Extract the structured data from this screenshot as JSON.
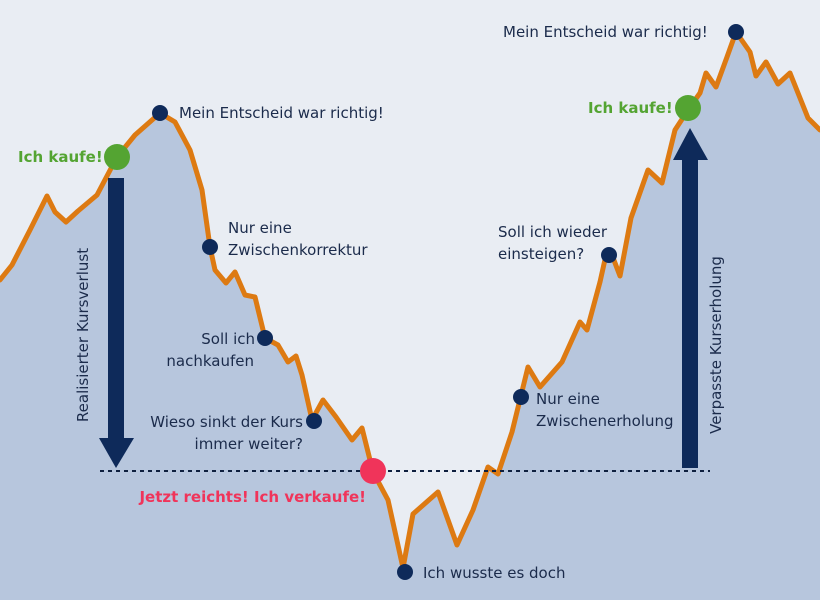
{
  "colors": {
    "background": "#e9edf3",
    "area_fill": "#b7c6dd",
    "price_line": "#dd7a12",
    "marker_dark": "#0e2a5a",
    "buy_marker": "#54a432",
    "sell_marker": "#f0345a",
    "arrow": "#0e2a5a"
  },
  "labels": {
    "buy_left": "Ich kaufe!",
    "peak_left": "Mein Entscheid war richtig!",
    "correction_1": "Nur eine",
    "correction_2": "Zwischenkorrektur",
    "buy_more_1": "Soll ich",
    "buy_more_2": "nachkaufen",
    "why_sink_1": "Wieso sinkt der Kurs",
    "why_sink_2": "immer weiter?",
    "sell": "Jetzt reichts! Ich verkaufe!",
    "bottom": "Ich wusste es doch",
    "recovery_1": "Nur eine",
    "recovery_2": "Zwischenerholung",
    "reenter_1": "Soll ich wieder",
    "reenter_2": "einsteigen?",
    "buy_right": "Ich kaufe!",
    "peak_right": "Mein Entscheid war richtig!",
    "realized_loss": "Realisierter Kursverlust",
    "missed_recovery": "Verpasste Kurserholung"
  }
}
